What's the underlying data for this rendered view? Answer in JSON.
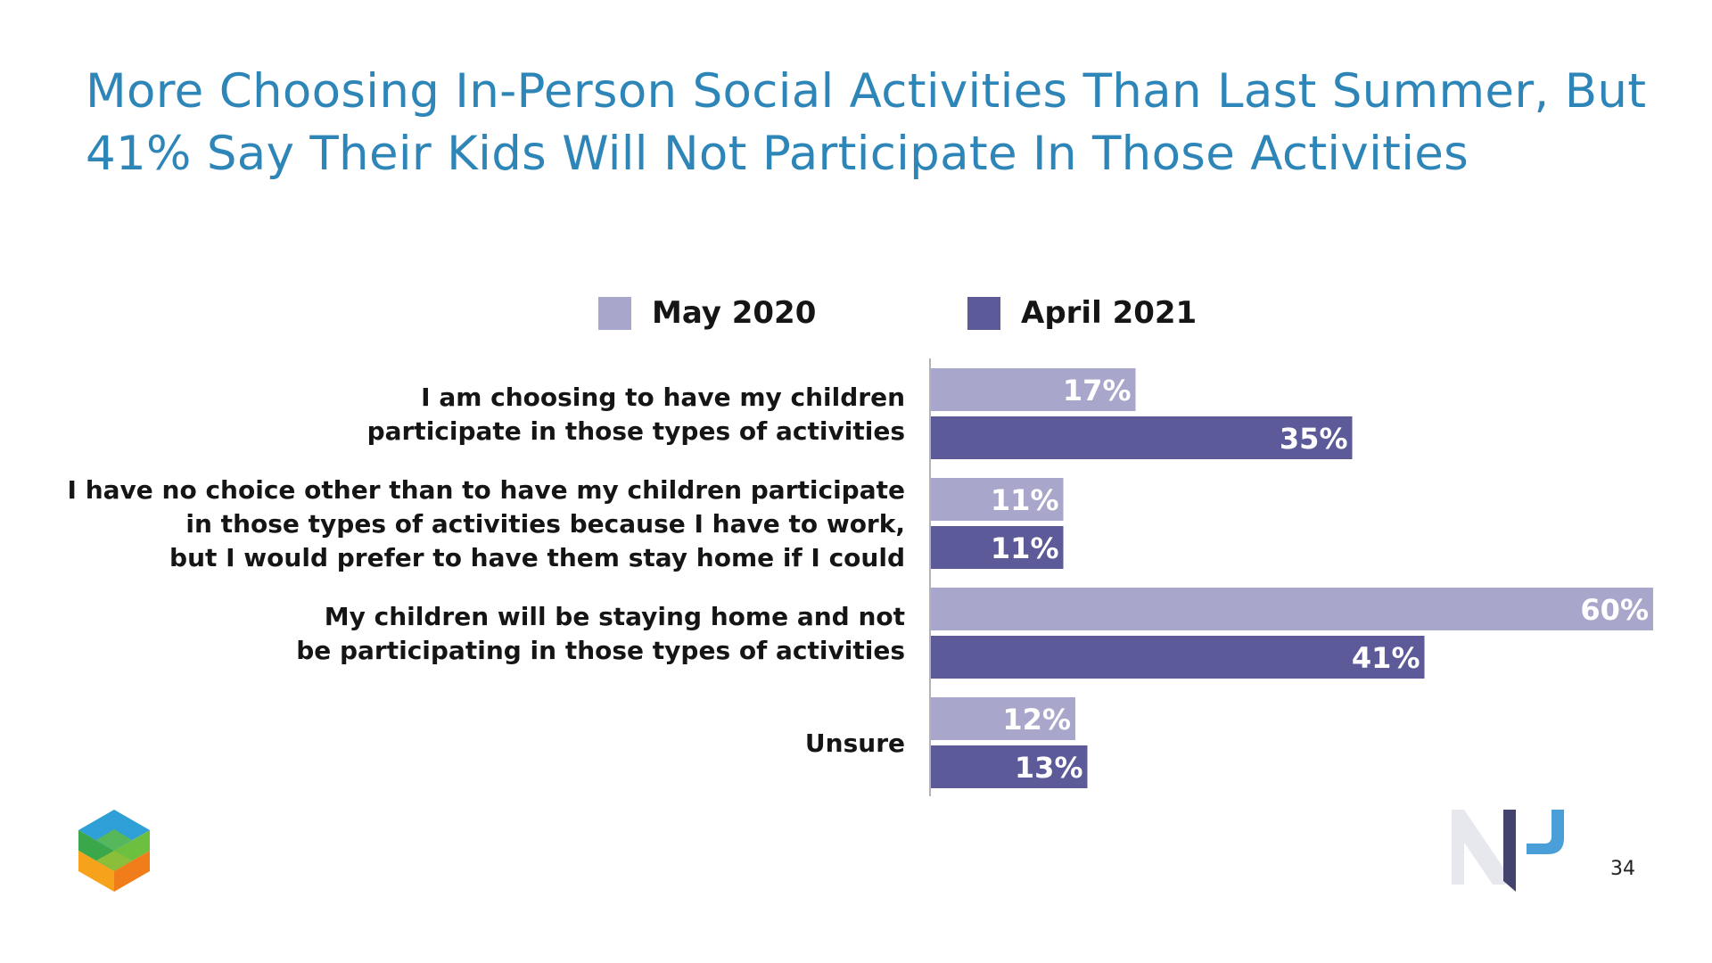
{
  "slide": {
    "title_line1": "More Choosing In-Person Social Activities Than Last Summer, But",
    "title_line2": "41% Say Their Kids Will Not Participate In Those Activities",
    "page_number": "34"
  },
  "colors": {
    "title": "#2e86b8",
    "may2020": "#a9a6cb",
    "april2021": "#5c5a98"
  },
  "chart_data": {
    "type": "bar",
    "orientation": "horizontal",
    "categories": [
      [
        "I am choosing to have my children",
        "participate in those types of activities"
      ],
      [
        "I have no choice other than to have my children participate",
        "in those types of activities because I have to work,",
        "but I would prefer to have them stay home if I could"
      ],
      [
        "My children will be staying home and not",
        "be participating in those types of activities"
      ],
      [
        "Unsure"
      ]
    ],
    "series": [
      {
        "name": "May 2020",
        "color": "#a9a6cb",
        "values": [
          17,
          11,
          60,
          12
        ],
        "labels": [
          "17%",
          "11%",
          "60%",
          "12%"
        ]
      },
      {
        "name": "April 2021",
        "color": "#5c5a98",
        "values": [
          35,
          11,
          41,
          13
        ],
        "labels": [
          "35%",
          "11%",
          "41%",
          "13%"
        ]
      }
    ],
    "unit": "%",
    "legend_position": "top",
    "grid": false
  }
}
